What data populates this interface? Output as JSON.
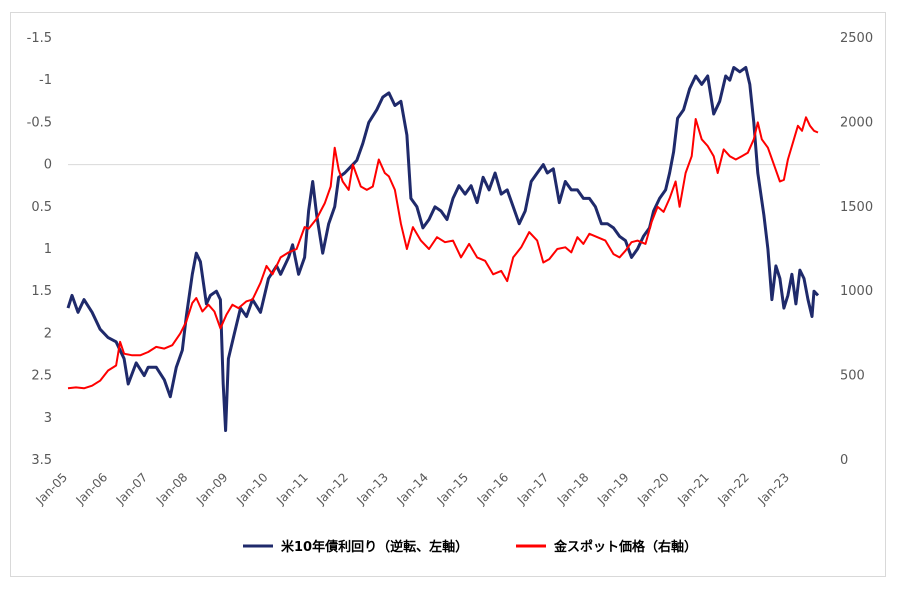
{
  "chart_data": {
    "type": "line",
    "title": "",
    "left_axis": {
      "inverted": true,
      "ylim": [
        -1.5,
        3.5
      ],
      "ticks": [
        "-1.5",
        "-1",
        "-0.5",
        "0",
        "0.5",
        "1",
        "1.5",
        "2",
        "2.5",
        "3",
        "3.5"
      ]
    },
    "right_axis": {
      "ylim": [
        0,
        2500
      ],
      "ticks": [
        "0",
        "500",
        "1000",
        "1500",
        "2000",
        "2500"
      ]
    },
    "x_range": [
      2005.0,
      2023.75
    ],
    "x_ticks": [
      "Jan-05",
      "Jan-06",
      "Jan-07",
      "Jan-08",
      "Jan-09",
      "Jan-10",
      "Jan-11",
      "Jan-12",
      "Jan-13",
      "Jan-14",
      "Jan-15",
      "Jan-16",
      "Jan-17",
      "Jan-18",
      "Jan-19",
      "Jan-20",
      "Jan-21",
      "Jan-22",
      "Jan-23"
    ],
    "legend_position": "bottom",
    "series": [
      {
        "name": "米10年債利回り（逆転、左軸）",
        "color": "#1f2a6b",
        "axis": "left",
        "points": [
          [
            2005.0,
            1.7
          ],
          [
            2005.1,
            1.55
          ],
          [
            2005.25,
            1.75
          ],
          [
            2005.4,
            1.6
          ],
          [
            2005.6,
            1.75
          ],
          [
            2005.8,
            1.95
          ],
          [
            2006.0,
            2.05
          ],
          [
            2006.2,
            2.1
          ],
          [
            2006.4,
            2.3
          ],
          [
            2006.5,
            2.6
          ],
          [
            2006.7,
            2.35
          ],
          [
            2006.9,
            2.5
          ],
          [
            2007.0,
            2.4
          ],
          [
            2007.2,
            2.4
          ],
          [
            2007.4,
            2.55
          ],
          [
            2007.55,
            2.75
          ],
          [
            2007.7,
            2.4
          ],
          [
            2007.85,
            2.2
          ],
          [
            2007.95,
            1.8
          ],
          [
            2008.1,
            1.3
          ],
          [
            2008.2,
            1.05
          ],
          [
            2008.3,
            1.15
          ],
          [
            2008.45,
            1.65
          ],
          [
            2008.55,
            1.55
          ],
          [
            2008.7,
            1.5
          ],
          [
            2008.8,
            1.6
          ],
          [
            2008.87,
            2.6
          ],
          [
            2008.93,
            3.15
          ],
          [
            2009.0,
            2.3
          ],
          [
            2009.15,
            2.0
          ],
          [
            2009.3,
            1.7
          ],
          [
            2009.45,
            1.8
          ],
          [
            2009.6,
            1.6
          ],
          [
            2009.8,
            1.75
          ],
          [
            2010.0,
            1.35
          ],
          [
            2010.2,
            1.2
          ],
          [
            2010.3,
            1.3
          ],
          [
            2010.5,
            1.1
          ],
          [
            2010.6,
            0.95
          ],
          [
            2010.75,
            1.3
          ],
          [
            2010.9,
            1.1
          ],
          [
            2011.0,
            0.55
          ],
          [
            2011.1,
            0.2
          ],
          [
            2011.2,
            0.6
          ],
          [
            2011.35,
            1.05
          ],
          [
            2011.5,
            0.7
          ],
          [
            2011.65,
            0.5
          ],
          [
            2011.75,
            0.15
          ],
          [
            2011.9,
            0.1
          ],
          [
            2012.1,
            0.0
          ],
          [
            2012.2,
            -0.05
          ],
          [
            2012.35,
            -0.25
          ],
          [
            2012.5,
            -0.5
          ],
          [
            2012.7,
            -0.65
          ],
          [
            2012.85,
            -0.8
          ],
          [
            2013.0,
            -0.85
          ],
          [
            2013.15,
            -0.7
          ],
          [
            2013.3,
            -0.75
          ],
          [
            2013.45,
            -0.35
          ],
          [
            2013.55,
            0.4
          ],
          [
            2013.7,
            0.5
          ],
          [
            2013.85,
            0.75
          ],
          [
            2014.0,
            0.65
          ],
          [
            2014.15,
            0.5
          ],
          [
            2014.3,
            0.55
          ],
          [
            2014.45,
            0.65
          ],
          [
            2014.6,
            0.4
          ],
          [
            2014.75,
            0.25
          ],
          [
            2014.9,
            0.35
          ],
          [
            2015.05,
            0.25
          ],
          [
            2015.2,
            0.45
          ],
          [
            2015.35,
            0.15
          ],
          [
            2015.5,
            0.3
          ],
          [
            2015.65,
            0.1
          ],
          [
            2015.8,
            0.35
          ],
          [
            2015.95,
            0.3
          ],
          [
            2016.1,
            0.5
          ],
          [
            2016.25,
            0.7
          ],
          [
            2016.4,
            0.55
          ],
          [
            2016.55,
            0.2
          ],
          [
            2016.7,
            0.1
          ],
          [
            2016.85,
            0.0
          ],
          [
            2016.95,
            0.1
          ],
          [
            2017.1,
            0.05
          ],
          [
            2017.25,
            0.45
          ],
          [
            2017.4,
            0.2
          ],
          [
            2017.55,
            0.3
          ],
          [
            2017.7,
            0.3
          ],
          [
            2017.85,
            0.4
          ],
          [
            2018.0,
            0.4
          ],
          [
            2018.15,
            0.5
          ],
          [
            2018.3,
            0.7
          ],
          [
            2018.45,
            0.7
          ],
          [
            2018.6,
            0.75
          ],
          [
            2018.75,
            0.85
          ],
          [
            2018.9,
            0.9
          ],
          [
            2019.05,
            1.1
          ],
          [
            2019.2,
            1.0
          ],
          [
            2019.35,
            0.85
          ],
          [
            2019.5,
            0.75
          ],
          [
            2019.6,
            0.55
          ],
          [
            2019.75,
            0.4
          ],
          [
            2019.9,
            0.3
          ],
          [
            2020.0,
            0.1
          ],
          [
            2020.1,
            -0.15
          ],
          [
            2020.2,
            -0.55
          ],
          [
            2020.35,
            -0.65
          ],
          [
            2020.5,
            -0.9
          ],
          [
            2020.65,
            -1.05
          ],
          [
            2020.8,
            -0.95
          ],
          [
            2020.95,
            -1.05
          ],
          [
            2021.1,
            -0.6
          ],
          [
            2021.25,
            -0.75
          ],
          [
            2021.4,
            -1.05
          ],
          [
            2021.5,
            -1.0
          ],
          [
            2021.6,
            -1.15
          ],
          [
            2021.75,
            -1.1
          ],
          [
            2021.9,
            -1.15
          ],
          [
            2022.0,
            -0.95
          ],
          [
            2022.1,
            -0.5
          ],
          [
            2022.2,
            0.1
          ],
          [
            2022.35,
            0.6
          ],
          [
            2022.45,
            1.0
          ],
          [
            2022.55,
            1.6
          ],
          [
            2022.65,
            1.2
          ],
          [
            2022.75,
            1.35
          ],
          [
            2022.85,
            1.7
          ],
          [
            2022.95,
            1.55
          ],
          [
            2023.05,
            1.3
          ],
          [
            2023.15,
            1.65
          ],
          [
            2023.25,
            1.25
          ],
          [
            2023.35,
            1.35
          ],
          [
            2023.45,
            1.6
          ],
          [
            2023.55,
            1.8
          ],
          [
            2023.6,
            1.5
          ],
          [
            2023.7,
            1.55
          ]
        ]
      },
      {
        "name": "金スポット価格（右軸）",
        "color": "#ff0000",
        "axis": "right",
        "points": [
          [
            2005.0,
            425
          ],
          [
            2005.2,
            430
          ],
          [
            2005.4,
            425
          ],
          [
            2005.6,
            440
          ],
          [
            2005.8,
            470
          ],
          [
            2006.0,
            530
          ],
          [
            2006.2,
            560
          ],
          [
            2006.3,
            700
          ],
          [
            2006.4,
            630
          ],
          [
            2006.6,
            620
          ],
          [
            2006.8,
            620
          ],
          [
            2007.0,
            640
          ],
          [
            2007.2,
            670
          ],
          [
            2007.4,
            660
          ],
          [
            2007.6,
            680
          ],
          [
            2007.8,
            750
          ],
          [
            2007.95,
            820
          ],
          [
            2008.1,
            930
          ],
          [
            2008.2,
            960
          ],
          [
            2008.35,
            880
          ],
          [
            2008.5,
            920
          ],
          [
            2008.65,
            880
          ],
          [
            2008.8,
            780
          ],
          [
            2008.95,
            860
          ],
          [
            2009.1,
            920
          ],
          [
            2009.25,
            900
          ],
          [
            2009.45,
            940
          ],
          [
            2009.6,
            950
          ],
          [
            2009.8,
            1050
          ],
          [
            2009.95,
            1150
          ],
          [
            2010.1,
            1100
          ],
          [
            2010.3,
            1200
          ],
          [
            2010.5,
            1230
          ],
          [
            2010.7,
            1250
          ],
          [
            2010.9,
            1380
          ],
          [
            2011.0,
            1370
          ],
          [
            2011.2,
            1430
          ],
          [
            2011.4,
            1520
          ],
          [
            2011.55,
            1620
          ],
          [
            2011.65,
            1850
          ],
          [
            2011.75,
            1720
          ],
          [
            2011.85,
            1650
          ],
          [
            2012.0,
            1600
          ],
          [
            2012.1,
            1750
          ],
          [
            2012.3,
            1620
          ],
          [
            2012.45,
            1600
          ],
          [
            2012.6,
            1620
          ],
          [
            2012.75,
            1780
          ],
          [
            2012.9,
            1700
          ],
          [
            2013.0,
            1680
          ],
          [
            2013.15,
            1600
          ],
          [
            2013.3,
            1400
          ],
          [
            2013.45,
            1250
          ],
          [
            2013.6,
            1380
          ],
          [
            2013.8,
            1300
          ],
          [
            2014.0,
            1250
          ],
          [
            2014.2,
            1320
          ],
          [
            2014.4,
            1290
          ],
          [
            2014.6,
            1300
          ],
          [
            2014.8,
            1200
          ],
          [
            2015.0,
            1280
          ],
          [
            2015.2,
            1200
          ],
          [
            2015.4,
            1180
          ],
          [
            2015.6,
            1100
          ],
          [
            2015.8,
            1120
          ],
          [
            2015.95,
            1060
          ],
          [
            2016.1,
            1200
          ],
          [
            2016.3,
            1260
          ],
          [
            2016.5,
            1350
          ],
          [
            2016.7,
            1300
          ],
          [
            2016.85,
            1170
          ],
          [
            2017.0,
            1190
          ],
          [
            2017.2,
            1250
          ],
          [
            2017.4,
            1260
          ],
          [
            2017.55,
            1230
          ],
          [
            2017.7,
            1320
          ],
          [
            2017.85,
            1280
          ],
          [
            2018.0,
            1340
          ],
          [
            2018.2,
            1320
          ],
          [
            2018.4,
            1300
          ],
          [
            2018.6,
            1220
          ],
          [
            2018.75,
            1200
          ],
          [
            2018.9,
            1240
          ],
          [
            2019.05,
            1290
          ],
          [
            2019.2,
            1300
          ],
          [
            2019.4,
            1280
          ],
          [
            2019.55,
            1410
          ],
          [
            2019.7,
            1500
          ],
          [
            2019.85,
            1470
          ],
          [
            2020.0,
            1550
          ],
          [
            2020.15,
            1650
          ],
          [
            2020.25,
            1500
          ],
          [
            2020.4,
            1700
          ],
          [
            2020.55,
            1800
          ],
          [
            2020.65,
            2020
          ],
          [
            2020.8,
            1900
          ],
          [
            2020.95,
            1860
          ],
          [
            2021.1,
            1800
          ],
          [
            2021.2,
            1700
          ],
          [
            2021.35,
            1840
          ],
          [
            2021.5,
            1800
          ],
          [
            2021.65,
            1780
          ],
          [
            2021.8,
            1800
          ],
          [
            2021.95,
            1820
          ],
          [
            2022.1,
            1900
          ],
          [
            2022.2,
            2000
          ],
          [
            2022.3,
            1900
          ],
          [
            2022.45,
            1850
          ],
          [
            2022.6,
            1750
          ],
          [
            2022.75,
            1650
          ],
          [
            2022.85,
            1660
          ],
          [
            2022.95,
            1780
          ],
          [
            2023.1,
            1900
          ],
          [
            2023.2,
            1980
          ],
          [
            2023.3,
            1950
          ],
          [
            2023.4,
            2030
          ],
          [
            2023.5,
            1980
          ],
          [
            2023.6,
            1950
          ],
          [
            2023.7,
            1940
          ]
        ]
      }
    ]
  }
}
